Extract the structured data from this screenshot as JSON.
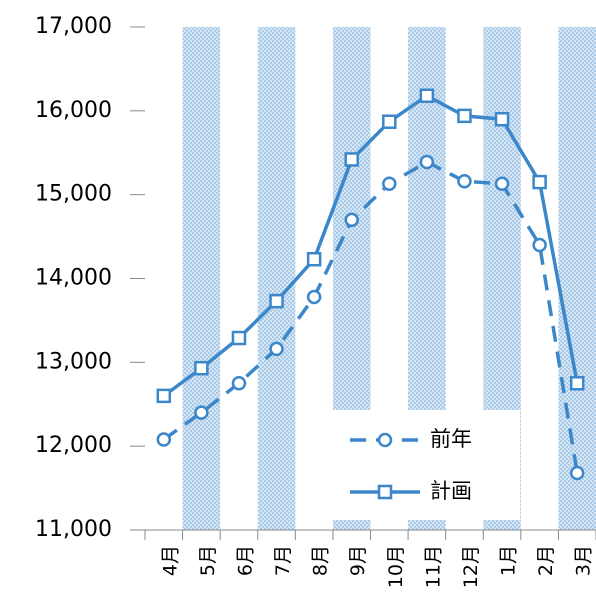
{
  "chart_data": {
    "type": "line",
    "categories": [
      "4月",
      "5月",
      "6月",
      "7月",
      "8月",
      "9月",
      "10月",
      "11月",
      "12月",
      "1月",
      "2月",
      "3月"
    ],
    "series": [
      {
        "name": "前年",
        "color": "#3b87c9",
        "dashed": true,
        "marker": "circle",
        "values": [
          12080,
          12400,
          12750,
          13160,
          13780,
          14700,
          15130,
          15390,
          15160,
          15130,
          14400,
          11680
        ]
      },
      {
        "name": "計画",
        "color": "#3b87c9",
        "dashed": false,
        "marker": "square",
        "values": [
          12600,
          12930,
          13290,
          13730,
          14230,
          15420,
          15870,
          16180,
          15940,
          15900,
          15150,
          12750
        ]
      }
    ],
    "ylim": [
      11000,
      17000
    ],
    "yticks": [
      {
        "value": 11000,
        "label": "11,000"
      },
      {
        "value": 12000,
        "label": "12,000"
      },
      {
        "value": 13000,
        "label": "13,000"
      },
      {
        "value": 14000,
        "label": "14,000"
      },
      {
        "value": 15000,
        "label": "15,000"
      },
      {
        "value": 16000,
        "label": "16,000"
      },
      {
        "value": 17000,
        "label": "17,000"
      }
    ],
    "legend": "lower-right"
  }
}
